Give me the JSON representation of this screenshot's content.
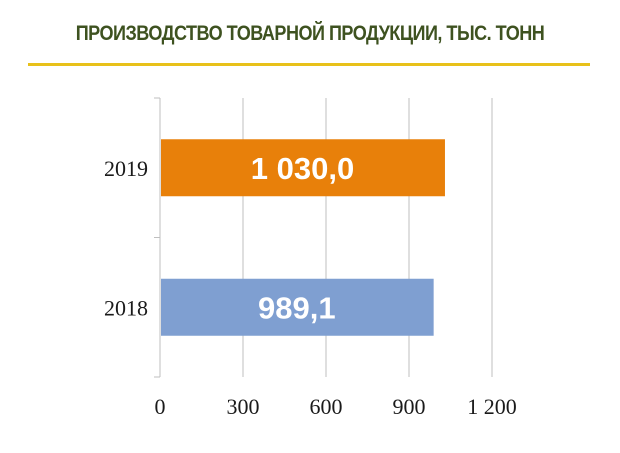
{
  "title": "ПРОИЗВОДСТВО ТОВАРНОЙ ПРОДУКЦИИ, ТЫС. ТОНН",
  "colors": {
    "title": "#3e5220",
    "title_rule": "#e8c11a",
    "grid": "#bfbfbf"
  },
  "chart_data": {
    "type": "bar",
    "orientation": "horizontal",
    "categories": [
      "2019",
      "2018"
    ],
    "values": [
      1030.0,
      989.1
    ],
    "data_labels": [
      "1 030,0",
      "989,1"
    ],
    "bar_colors": [
      "#e8800a",
      "#7f9fd1"
    ],
    "xlim": [
      0,
      1200
    ],
    "x_ticks": [
      0,
      300,
      600,
      900,
      1200
    ],
    "x_tick_labels": [
      "0",
      "300",
      "600",
      "900",
      "1 200"
    ],
    "grid": true,
    "legend": "none"
  }
}
